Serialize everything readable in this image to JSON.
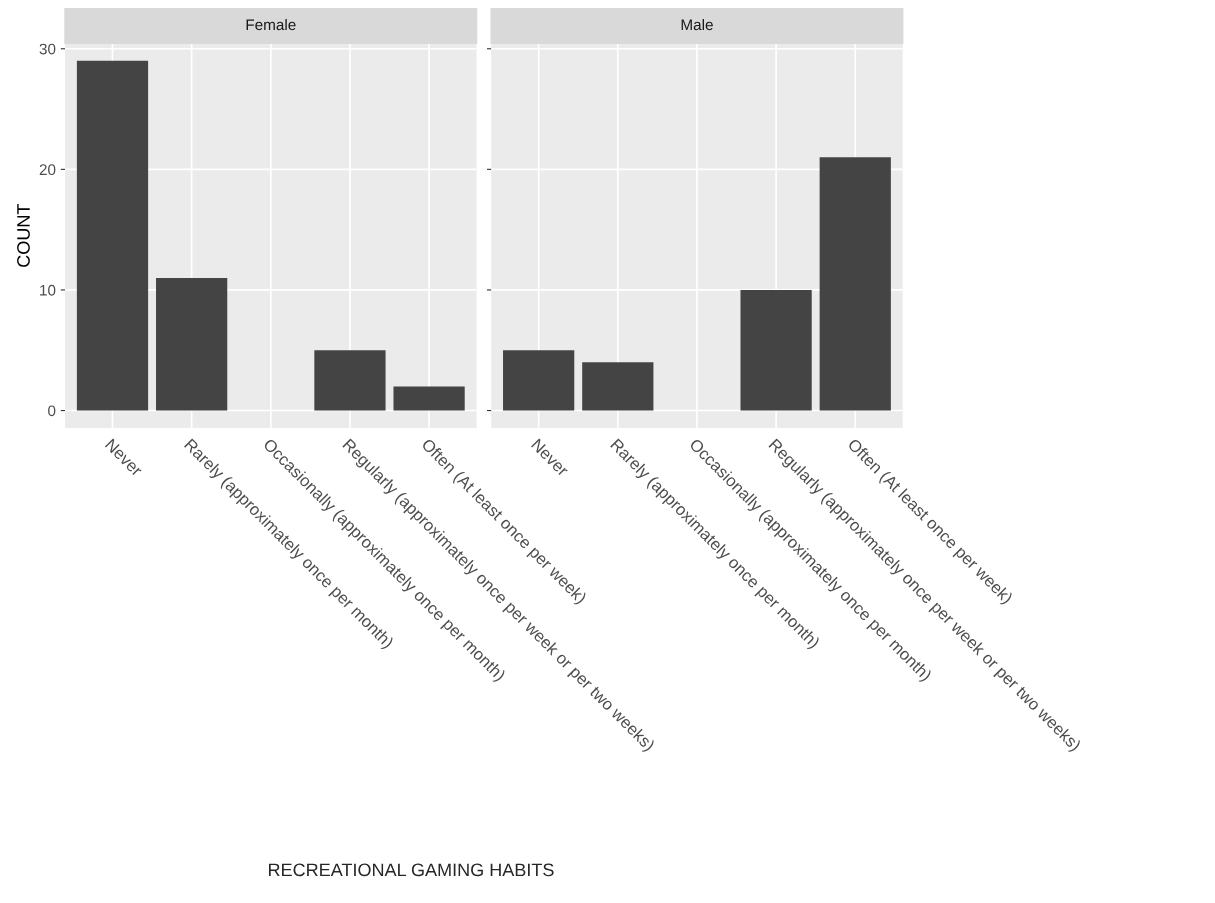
{
  "chart_data": [
    {
      "type": "bar",
      "title": "Female",
      "xlabel": "RECREATIONAL GAMING HABITS",
      "ylabel": "COUNT",
      "categories": [
        "Never",
        "Rarely (approximately once per month)",
        "Occasionally (approximately once per month)",
        "Regularly (approximately once per week or per two weeks)",
        "Often (At least once per week)"
      ],
      "values": [
        29,
        11,
        0,
        5,
        2
      ],
      "color": "#444444",
      "ylim": [
        -1.45,
        30.45
      ],
      "yticks": [
        0,
        10,
        20,
        30
      ],
      "grid": true
    },
    {
      "type": "bar",
      "title": "Male",
      "categories": [
        "Never",
        "Rarely (approximately once per month)",
        "Occasionally (approximately once per month)",
        "Regularly (approximately once per week or per two weeks)",
        "Often (At least once per week)"
      ],
      "values": [
        5,
        4,
        0,
        10,
        21
      ],
      "color": "#444444",
      "ylim": [
        -1.45,
        30.45
      ],
      "yticks": [
        0,
        10,
        20,
        30
      ],
      "grid": true,
      "tick_labels": "x"
    }
  ]
}
